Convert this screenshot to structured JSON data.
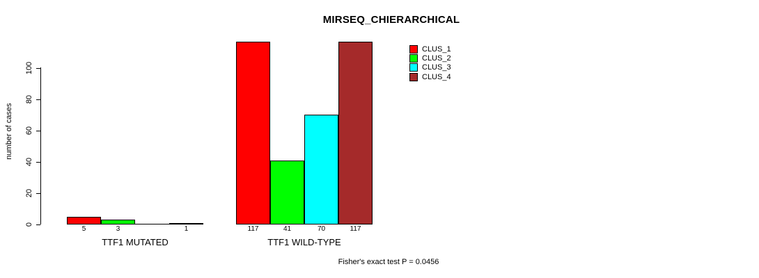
{
  "chart_data": {
    "type": "bar",
    "title": "MIRSEQ_CHIERARCHICAL",
    "ylabel": "number of cases",
    "xlabel": "",
    "ylim": [
      0,
      117
    ],
    "yticks": [
      0,
      20,
      40,
      60,
      80,
      100
    ],
    "categories": [
      "TTF1 MUTATED",
      "TTF1 WILD-TYPE"
    ],
    "series": [
      {
        "name": "CLUS_1",
        "color": "#FF0000",
        "values": [
          5,
          117
        ]
      },
      {
        "name": "CLUS_2",
        "color": "#00FF00",
        "values": [
          3,
          41
        ]
      },
      {
        "name": "CLUS_3",
        "color": "#00FFFF",
        "values": [
          0,
          70
        ]
      },
      {
        "name": "CLUS_4",
        "color": "#A52A2A",
        "values": [
          1,
          117
        ]
      }
    ],
    "bar_labels": [
      [
        "5",
        "3",
        "",
        "1"
      ],
      [
        "117",
        "41",
        "70",
        "117"
      ]
    ],
    "legend_position": "top-right",
    "grid": false,
    "annotation": "Fisher's exact test P = 0.0456"
  }
}
